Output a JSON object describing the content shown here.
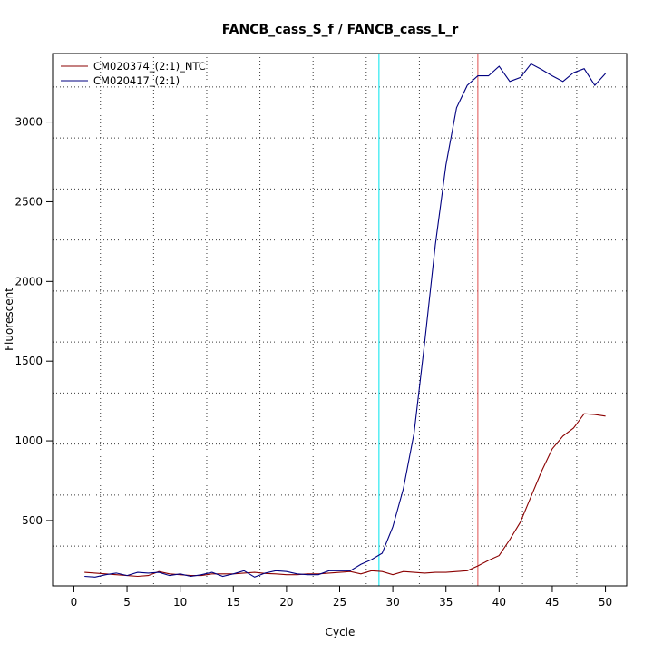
{
  "chart_data": {
    "type": "line",
    "title": "FANCB_cass_S_f / FANCB_cass_L_r",
    "xlabel": "Cycle",
    "ylabel": "Fluorescent",
    "xlim": [
      -2.0,
      52.0
    ],
    "ylim": [
      90,
      3430
    ],
    "x_ticks": [
      0,
      5,
      10,
      15,
      20,
      25,
      30,
      35,
      40,
      45,
      50
    ],
    "y_ticks": [
      500,
      1000,
      1500,
      2000,
      2500,
      3000
    ],
    "grid": true,
    "grid_style": "dotted",
    "grid_x": [
      2.5,
      7.5,
      12.5,
      17.5,
      22.5,
      27.5,
      32.5,
      37.5,
      42.2,
      47.3
    ],
    "grid_y": [
      340,
      660,
      980,
      1300,
      1620,
      1940,
      2260,
      2580,
      2900,
      3220
    ],
    "legend_position": "top-left",
    "vertical_lines": [
      {
        "x": 28.7,
        "color": "#00e5ee"
      },
      {
        "x": 38.0,
        "color": "#e05050"
      }
    ],
    "x": [
      1,
      2,
      3,
      4,
      5,
      6,
      7,
      8,
      9,
      10,
      11,
      12,
      13,
      14,
      15,
      16,
      17,
      18,
      19,
      20,
      21,
      22,
      23,
      24,
      25,
      26,
      27,
      28,
      29,
      30,
      31,
      32,
      33,
      34,
      35,
      36,
      37,
      38,
      39,
      40,
      41,
      42,
      43,
      44,
      45,
      46,
      47,
      48,
      49,
      50
    ],
    "series": [
      {
        "name": "CM020374_(2:1)_NTC",
        "color": "#8b0000",
        "values": [
          175,
          170,
          165,
          160,
          155,
          150,
          155,
          180,
          165,
          160,
          155,
          155,
          165,
          165,
          165,
          170,
          175,
          168,
          165,
          160,
          160,
          165,
          165,
          170,
          175,
          180,
          165,
          185,
          180,
          160,
          180,
          175,
          170,
          175,
          175,
          180,
          185,
          215,
          250,
          280,
          380,
          490,
          650,
          810,
          950,
          1030,
          1080,
          1170,
          1165,
          1155
        ]
      },
      {
        "name": "CM020417_(2:1)",
        "color": "#000080",
        "values": [
          150,
          145,
          160,
          170,
          155,
          175,
          170,
          175,
          155,
          165,
          150,
          160,
          175,
          150,
          165,
          185,
          145,
          170,
          185,
          180,
          165,
          160,
          160,
          185,
          185,
          185,
          225,
          255,
          295,
          460,
          700,
          1050,
          1620,
          2230,
          2730,
          3090,
          3230,
          3290,
          3290,
          3350,
          3255,
          3280,
          3365,
          3330,
          3290,
          3255,
          3310,
          3335,
          3230,
          3305
        ]
      }
    ]
  }
}
